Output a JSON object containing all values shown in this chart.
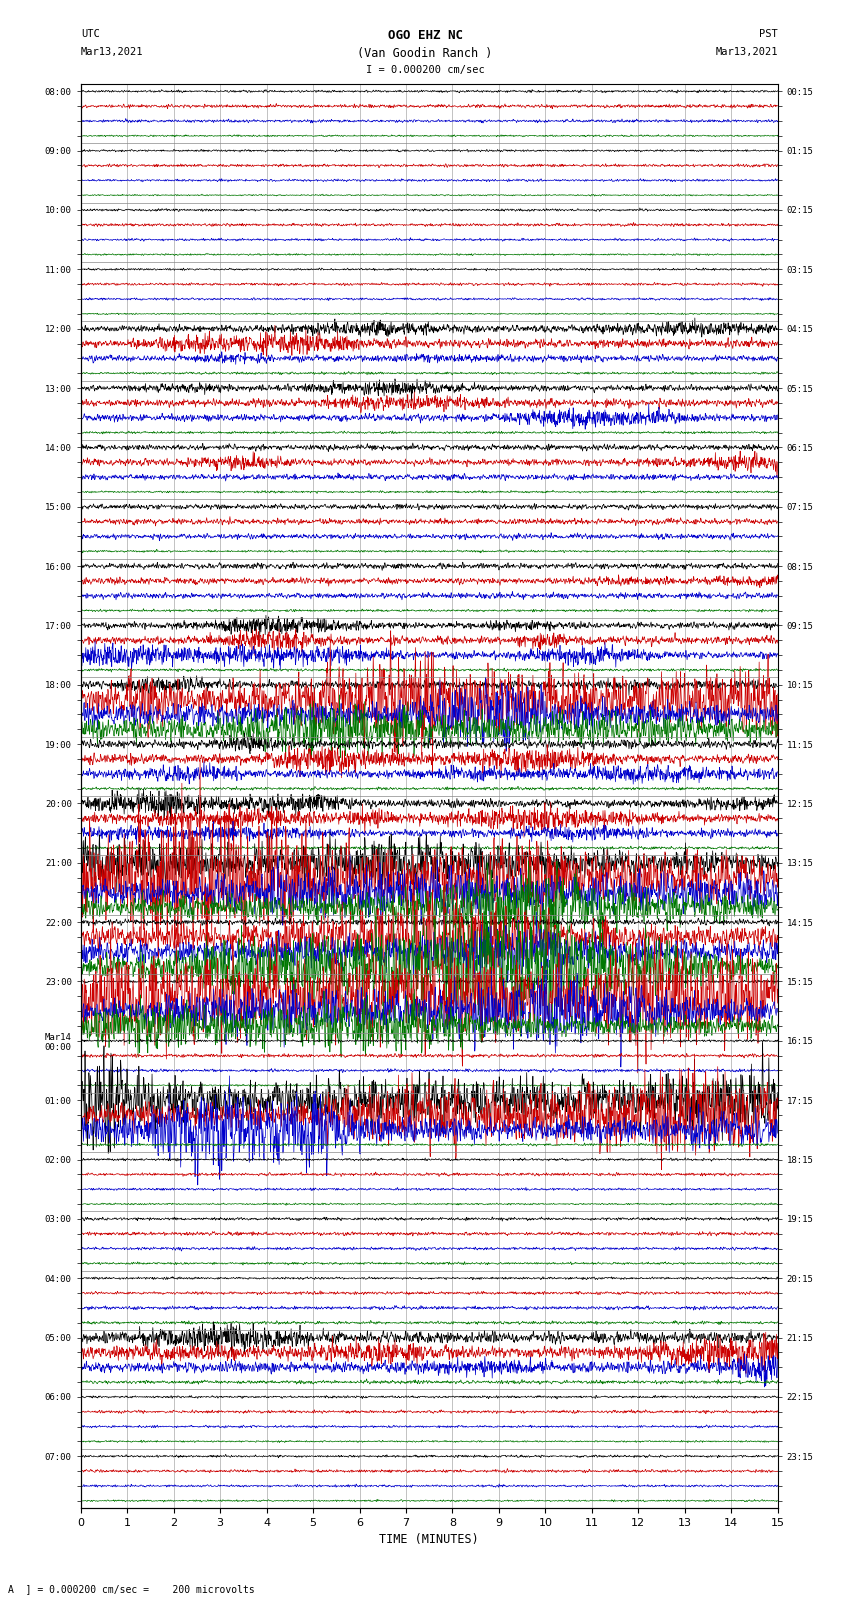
{
  "title_line1": "OGO EHZ NC",
  "title_line2": "(Van Goodin Ranch )",
  "scale_text": "I = 0.000200 cm/sec",
  "bottom_scale_text": "A  ] = 0.000200 cm/sec =    200 microvolts",
  "left_header_line1": "UTC",
  "left_header_line2": "Mar13,2021",
  "right_header_line1": "PST",
  "right_header_line2": "Mar13,2021",
  "xlabel": "TIME (MINUTES)",
  "xmin": 0,
  "xmax": 15,
  "xticks": [
    0,
    1,
    2,
    3,
    4,
    5,
    6,
    7,
    8,
    9,
    10,
    11,
    12,
    13,
    14,
    15
  ],
  "background_color": "#ffffff",
  "trace_colors": [
    "#000000",
    "#cc0000",
    "#0000cc",
    "#007700"
  ],
  "grid_color": "#aaaaaa",
  "fig_width": 8.5,
  "fig_height": 16.13,
  "utc_labels": [
    "08:00",
    "",
    "",
    "",
    "09:00",
    "",
    "",
    "",
    "10:00",
    "",
    "",
    "",
    "11:00",
    "",
    "",
    "",
    "12:00",
    "",
    "",
    "",
    "13:00",
    "",
    "",
    "",
    "14:00",
    "",
    "",
    "",
    "15:00",
    "",
    "",
    "",
    "16:00",
    "",
    "",
    "",
    "17:00",
    "",
    "",
    "",
    "18:00",
    "",
    "",
    "",
    "19:00",
    "",
    "",
    "",
    "20:00",
    "",
    "",
    "",
    "21:00",
    "",
    "",
    "",
    "22:00",
    "",
    "",
    "",
    "23:00",
    "",
    "",
    "",
    "Mar14\n00:00",
    "",
    "",
    "",
    "01:00",
    "",
    "",
    "",
    "02:00",
    "",
    "",
    "",
    "03:00",
    "",
    "",
    "",
    "04:00",
    "",
    "",
    "",
    "05:00",
    "",
    "",
    "",
    "06:00",
    "",
    "",
    "",
    "07:00",
    "",
    "",
    ""
  ],
  "pst_labels": [
    "00:15",
    "",
    "",
    "",
    "01:15",
    "",
    "",
    "",
    "02:15",
    "",
    "",
    "",
    "03:15",
    "",
    "",
    "",
    "04:15",
    "",
    "",
    "",
    "05:15",
    "",
    "",
    "",
    "06:15",
    "",
    "",
    "",
    "07:15",
    "",
    "",
    "",
    "08:15",
    "",
    "",
    "",
    "09:15",
    "",
    "",
    "",
    "10:15",
    "",
    "",
    "",
    "11:15",
    "",
    "",
    "",
    "12:15",
    "",
    "",
    "",
    "13:15",
    "",
    "",
    "",
    "14:15",
    "",
    "",
    "",
    "15:15",
    "",
    "",
    "",
    "16:15",
    "",
    "",
    "",
    "17:15",
    "",
    "",
    "",
    "18:15",
    "",
    "",
    "",
    "19:15",
    "",
    "",
    "",
    "20:15",
    "",
    "",
    "",
    "21:15",
    "",
    "",
    "",
    "22:15",
    "",
    "",
    "",
    "23:15",
    "",
    "",
    ""
  ],
  "num_traces": 96,
  "seed": 42,
  "amplitude_levels": [
    0.08,
    0.12,
    0.1,
    0.06,
    0.07,
    0.1,
    0.08,
    0.05,
    0.08,
    0.1,
    0.08,
    0.06,
    0.07,
    0.09,
    0.08,
    0.05,
    0.25,
    0.3,
    0.22,
    0.08,
    0.22,
    0.28,
    0.25,
    0.08,
    0.2,
    0.24,
    0.2,
    0.07,
    0.18,
    0.2,
    0.18,
    0.07,
    0.2,
    0.22,
    0.2,
    0.08,
    0.22,
    0.28,
    0.25,
    0.09,
    0.28,
    0.85,
    0.8,
    0.75,
    0.3,
    0.35,
    0.3,
    0.1,
    0.28,
    0.3,
    0.28,
    0.1,
    0.85,
    0.9,
    0.88,
    0.85,
    0.2,
    0.8,
    0.75,
    0.7,
    0.1,
    0.75,
    0.72,
    0.68,
    0.08,
    0.12,
    0.1,
    0.06,
    0.85,
    0.88,
    0.85,
    0.08,
    0.08,
    0.1,
    0.08,
    0.06,
    0.1,
    0.12,
    0.1,
    0.08,
    0.08,
    0.1,
    0.12,
    0.1,
    0.42,
    0.45,
    0.4,
    0.12,
    0.08,
    0.1,
    0.08,
    0.06,
    0.08,
    0.1,
    0.08,
    0.06
  ]
}
